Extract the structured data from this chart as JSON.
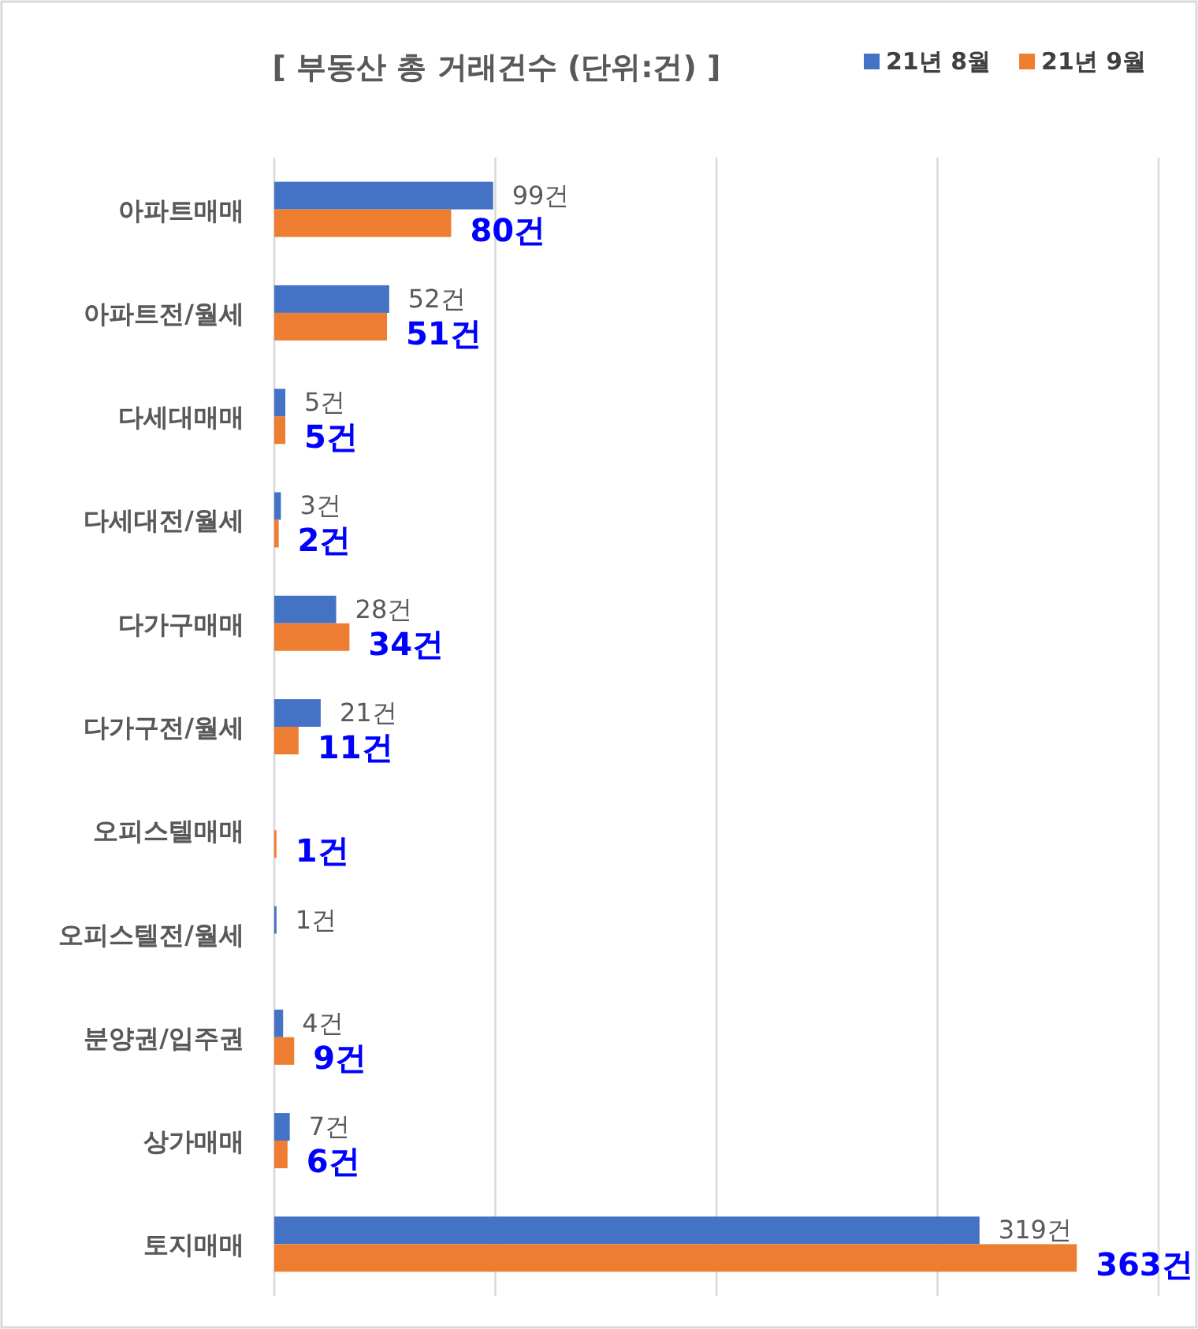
{
  "chart_data": {
    "type": "bar",
    "orientation": "horizontal",
    "title": "[ 부동산 총 거래건수 (단위:건) ]",
    "categories": [
      "아파트매매",
      "아파트전/월세",
      "다세대매매",
      "다세대전/월세",
      "다가구매매",
      "다가구전/월세",
      "오피스텔매매",
      "오피스텔전/월세",
      "분양권/입주권",
      "상가매매",
      "토지매매"
    ],
    "series": [
      {
        "name": "21년 8월",
        "color": "#4472c4",
        "values": [
          99,
          52,
          5,
          3,
          28,
          21,
          null,
          1,
          4,
          7,
          319
        ],
        "value_labels": [
          "99건",
          "52건",
          "5건",
          "3건",
          "28건",
          "21건",
          null,
          "1건",
          "4건",
          "7건",
          "319건"
        ]
      },
      {
        "name": "21년 9월",
        "color": "#ed7d31",
        "values": [
          80,
          51,
          5,
          2,
          34,
          11,
          1,
          null,
          9,
          6,
          363
        ],
        "value_labels": [
          "80건",
          "51건",
          "5건",
          "2건",
          "34건",
          "11건",
          "1건",
          null,
          "9건",
          "6건",
          "363건"
        ]
      }
    ],
    "xlim": [
      0,
      400
    ],
    "xticks": [
      {
        "value": 0,
        "label": null
      },
      {
        "value": 100,
        "label": null
      },
      {
        "value": 200,
        "label": null
      },
      {
        "value": 300,
        "label": null
      },
      {
        "value": 400,
        "label": null
      }
    ],
    "grid": "x",
    "legend": "top right",
    "tick_labels": "y"
  }
}
